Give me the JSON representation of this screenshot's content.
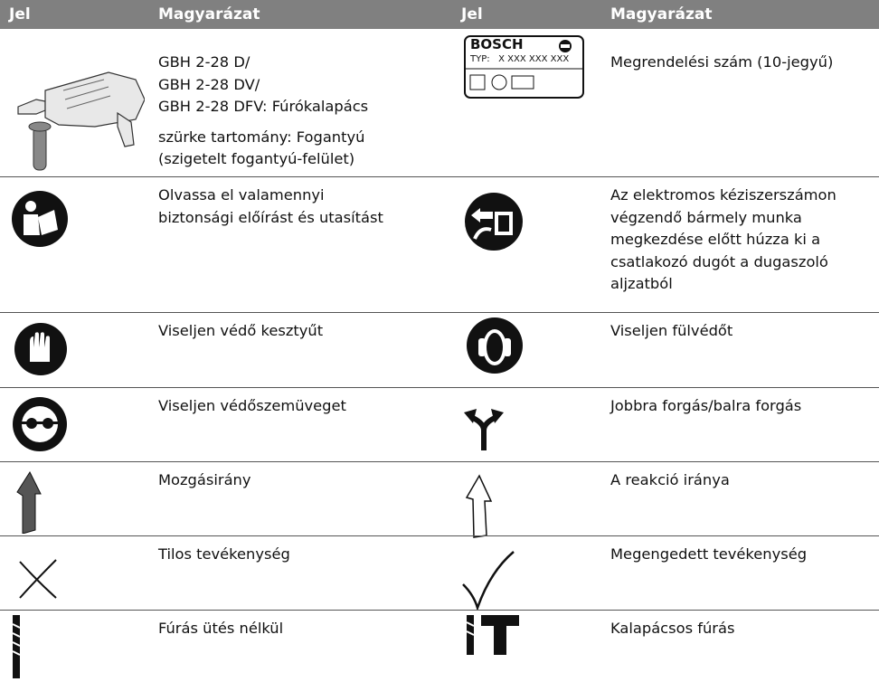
{
  "table": {
    "headers": [
      "Jel",
      "Magyarázat",
      "Jel",
      "Magyarázat"
    ],
    "rows": [
      {
        "left_text": [
          [
            "GBH 2-28 D/",
            "GBH 2-28 DV/",
            "GBH 2-28 DFV: Fúrókalapács"
          ],
          [
            "szürke tartomány: Fogantyú",
            "(szigetelt fogantyú-felület)"
          ]
        ],
        "right_icon_text": [
          "BOSCH",
          "TYP:   X XXX XXX XXX"
        ],
        "right_text": [
          [
            "Megrendelési szám (10-jegyű)"
          ]
        ]
      },
      {
        "left_text": [
          [
            "Olvassa el valamennyi",
            "biztonsági előírást és utasítást"
          ]
        ],
        "right_text": [
          [
            "Az elektromos kéziszerszámon",
            "végzendő bármely munka",
            "megkezdése előtt húzza ki a",
            "csatlakozó dugót a dugaszoló",
            "aljzatból"
          ]
        ]
      },
      {
        "left_text": [
          [
            "Viseljen védő kesztyűt"
          ]
        ],
        "right_text": [
          [
            "Viseljen fülvédőt"
          ]
        ]
      },
      {
        "left_text": [
          [
            "Viseljen védőszemüveget"
          ]
        ],
        "right_text": [
          [
            "Jobbra forgás/balra forgás"
          ]
        ]
      },
      {
        "left_text": [
          [
            "Mozgásirány"
          ]
        ],
        "right_text": [
          [
            "A reakció iránya"
          ]
        ]
      },
      {
        "left_text": [
          [
            "Tilos tevékenység"
          ]
        ],
        "right_text": [
          [
            "Megengedett tevékenység"
          ]
        ]
      },
      {
        "left_text": [
          [
            "Fúrás ütés nélkül"
          ]
        ],
        "right_text": [
          [
            "Kalapácsos fúrás"
          ]
        ]
      }
    ]
  }
}
